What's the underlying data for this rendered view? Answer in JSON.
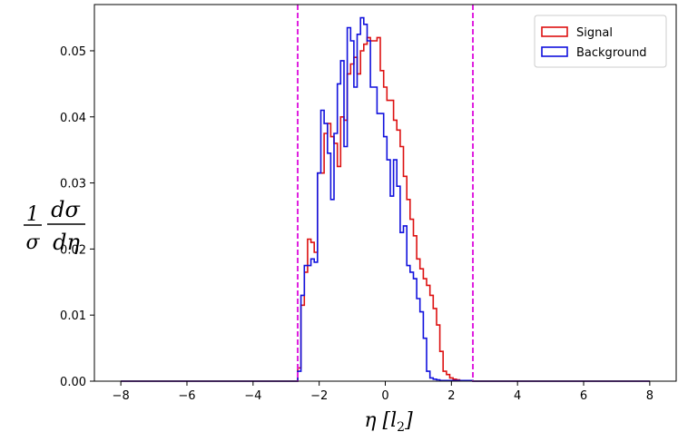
{
  "chart_data": {
    "type": "histogram-step",
    "xlabel": "η [l₂]",
    "ylabel": "1/σ dσ/dη",
    "xlim": [
      -8.8,
      8.8
    ],
    "ylim": [
      0,
      0.057
    ],
    "xticks": [
      "−8",
      "−6",
      "−4",
      "−2",
      "0",
      "2",
      "4",
      "6",
      "8"
    ],
    "xtick_values": [
      -8,
      -6,
      -4,
      -2,
      0,
      2,
      4,
      6,
      8
    ],
    "yticks": [
      "0.00",
      "0.01",
      "0.02",
      "0.03",
      "0.04",
      "0.05"
    ],
    "ytick_values": [
      0,
      0.01,
      0.02,
      0.03,
      0.04,
      0.05
    ],
    "cut_lines": [
      -2.65,
      2.65
    ],
    "cut_line_color": "#e020e0",
    "legend_position": "top-right",
    "series": [
      {
        "name": "Signal",
        "color": "#dd1111",
        "edges": [
          -8.0,
          -2.65,
          -2.55,
          -2.45,
          -2.35,
          -2.25,
          -2.15,
          -2.05,
          -1.95,
          -1.85,
          -1.75,
          -1.65,
          -1.55,
          -1.45,
          -1.35,
          -1.25,
          -1.15,
          -1.05,
          -0.95,
          -0.85,
          -0.75,
          -0.65,
          -0.55,
          -0.45,
          -0.35,
          -0.25,
          -0.15,
          -0.05,
          0.05,
          0.15,
          0.25,
          0.35,
          0.45,
          0.55,
          0.65,
          0.75,
          0.85,
          0.95,
          1.05,
          1.15,
          1.25,
          1.35,
          1.45,
          1.55,
          1.65,
          1.75,
          1.85,
          1.95,
          2.05,
          2.15,
          2.25,
          2.35,
          2.45,
          2.55,
          2.65,
          8.0
        ],
        "values": [
          0,
          0.002,
          0.0115,
          0.0165,
          0.0215,
          0.021,
          0.0195,
          0.0315,
          0.0315,
          0.0375,
          0.039,
          0.037,
          0.036,
          0.0325,
          0.04,
          0.0395,
          0.0465,
          0.048,
          0.049,
          0.0465,
          0.05,
          0.051,
          0.052,
          0.0515,
          0.0515,
          0.052,
          0.047,
          0.0445,
          0.0425,
          0.0425,
          0.0395,
          0.038,
          0.0355,
          0.031,
          0.0275,
          0.0245,
          0.022,
          0.0185,
          0.017,
          0.0155,
          0.0145,
          0.013,
          0.011,
          0.0085,
          0.0045,
          0.0015,
          0.001,
          0.0005,
          0.0003,
          0.0002,
          0.0001,
          0.0001,
          0.0001,
          0.0001,
          0
        ]
      },
      {
        "name": "Background",
        "color": "#1111dd",
        "edges": [
          -8.0,
          -2.65,
          -2.55,
          -2.45,
          -2.35,
          -2.25,
          -2.15,
          -2.05,
          -1.95,
          -1.85,
          -1.75,
          -1.65,
          -1.55,
          -1.45,
          -1.35,
          -1.25,
          -1.15,
          -1.05,
          -0.95,
          -0.85,
          -0.75,
          -0.65,
          -0.55,
          -0.45,
          -0.35,
          -0.25,
          -0.15,
          -0.05,
          0.05,
          0.15,
          0.25,
          0.35,
          0.45,
          0.55,
          0.65,
          0.75,
          0.85,
          0.95,
          1.05,
          1.15,
          1.25,
          1.35,
          1.45,
          1.55,
          1.65,
          1.75,
          1.85,
          1.95,
          2.05,
          2.15,
          2.25,
          2.35,
          2.45,
          2.55,
          2.65,
          8.0
        ],
        "values": [
          0,
          0.0015,
          0.013,
          0.0175,
          0.0175,
          0.0185,
          0.018,
          0.0315,
          0.041,
          0.039,
          0.0345,
          0.0275,
          0.0375,
          0.045,
          0.0485,
          0.0355,
          0.0535,
          0.0515,
          0.0445,
          0.0525,
          0.055,
          0.054,
          0.0515,
          0.0445,
          0.0445,
          0.0405,
          0.0405,
          0.037,
          0.0335,
          0.028,
          0.0335,
          0.0295,
          0.0225,
          0.0235,
          0.0175,
          0.0165,
          0.0155,
          0.0125,
          0.0105,
          0.0065,
          0.0015,
          0.0005,
          0.0003,
          0.0002,
          0.0001,
          0.0001,
          0.0001,
          0.0001,
          0.0001,
          0.0001,
          0.0001,
          0.0001,
          0.0001,
          0.0001,
          0
        ]
      }
    ]
  }
}
